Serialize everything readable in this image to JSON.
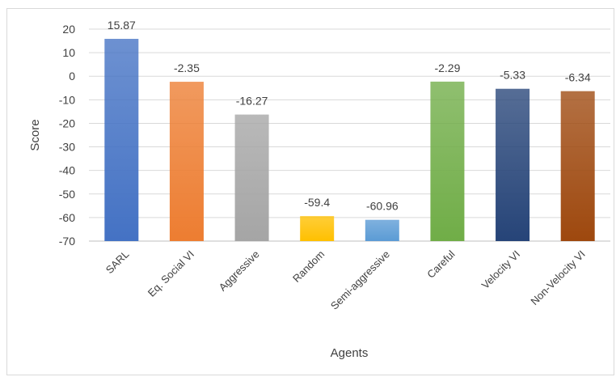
{
  "chart_data": {
    "type": "bar",
    "xlabel": "Agents",
    "ylabel": "Score",
    "ylim": [
      -70,
      20
    ],
    "yticks": [
      20,
      10,
      0,
      -10,
      -20,
      -30,
      -40,
      -50,
      -60,
      -70
    ],
    "grid": true,
    "legend": "none",
    "categories": [
      "SARL",
      "Eq. Social VI",
      "Aggressive",
      "Random",
      "Semi-aggressive",
      "Careful",
      "Velocity VI",
      "Non-Velocity VI"
    ],
    "values": [
      15.87,
      -2.35,
      -16.27,
      -59.4,
      -60.96,
      -2.29,
      -5.33,
      -6.34
    ],
    "data_labels": [
      "15.87",
      "-2.35",
      "-16.27",
      "-59.4",
      "-60.96",
      "-2.29",
      "-5.33",
      "-6.34"
    ],
    "colors": [
      "#4472c4",
      "#ed7d31",
      "#a5a5a5",
      "#ffc000",
      "#5b9bd5",
      "#70ad47",
      "#264478",
      "#9e480e"
    ]
  }
}
